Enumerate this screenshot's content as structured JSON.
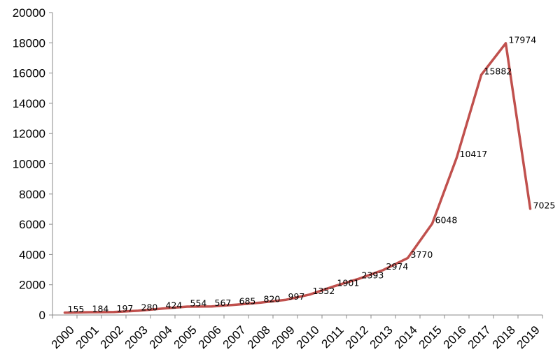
{
  "chart_data": {
    "type": "line",
    "title": "",
    "xlabel": "",
    "ylabel": "",
    "categories": [
      "2000",
      "2001",
      "2002",
      "2003",
      "2004",
      "2005",
      "2006",
      "2007",
      "2008",
      "2009",
      "2010",
      "2011",
      "2012",
      "2013",
      "2014",
      "2015",
      "2016",
      "2017",
      "2018",
      "2019"
    ],
    "series": [
      {
        "name": "Series 1",
        "color": "#C0504D",
        "values": [
          155,
          184,
          197,
          280,
          424,
          554,
          567,
          685,
          820,
          997,
          1352,
          1901,
          2393,
          2974,
          3770,
          6048,
          10417,
          15882,
          17974,
          7025
        ]
      }
    ],
    "ylim": [
      0,
      20000
    ],
    "yticks": [
      "0",
      "2000",
      "4000",
      "6000",
      "8000",
      "10000",
      "12000",
      "14000",
      "16000",
      "18000",
      "20000"
    ],
    "grid": false,
    "legend": "none"
  }
}
